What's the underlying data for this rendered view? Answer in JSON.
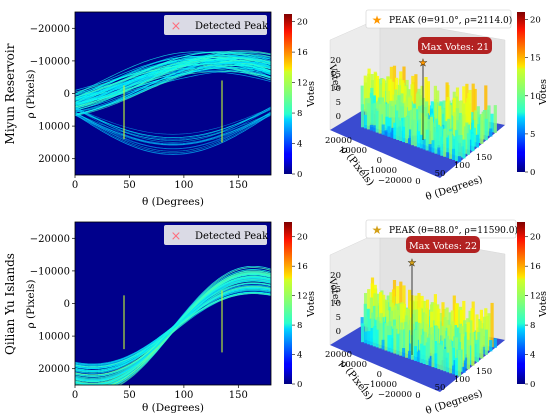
{
  "figure": {
    "rows": [
      {
        "row_label": "Miyun Reservoir",
        "hough": {
          "legend_label": "Detected Peak",
          "colorbar_label": "Votes",
          "colorbar_ticks": [
            "0",
            "4",
            "8",
            "12",
            "16",
            "20"
          ],
          "xlabel": "θ (Degrees)",
          "ylabel": "ρ (Pixels)"
        },
        "surface": {
          "legend_label": "PEAK (θ=91.0°, ρ=2114.0)",
          "max_label": "Max Votes: 21",
          "colorbar_label": "Votes",
          "colorbar_ticks": [
            "0",
            "5",
            "10",
            "15",
            "20"
          ],
          "xlabel": "θ (Degrees)",
          "ylabel": "ρ (Pixels)",
          "zlabel": "Votes",
          "x_ticks": [
            "0",
            "50",
            "100",
            "150"
          ],
          "y_ticks": [
            "20000",
            "10000",
            "0",
            "−10000",
            "−20000"
          ],
          "z_ticks": [
            "0",
            "5",
            "10",
            "15",
            "20"
          ]
        }
      },
      {
        "row_label": "Qilian Yu Islands",
        "hough": {
          "legend_label": "Detected Peak",
          "colorbar_label": "Votes",
          "colorbar_ticks": [
            "0",
            "4",
            "8",
            "12",
            "16",
            "20"
          ],
          "xlabel": "θ (Degrees)",
          "ylabel": "ρ (Pixels)"
        },
        "surface": {
          "legend_label": "PEAK (θ=88.0°, ρ=11590.0)",
          "max_label": "Max Votes: 22",
          "colorbar_label": "Votes",
          "colorbar_ticks": [
            "0",
            "4",
            "8",
            "12",
            "16",
            "20"
          ],
          "xlabel": "θ (Degrees)",
          "ylabel": "ρ (Pixels)",
          "zlabel": "Votes",
          "x_ticks": [
            "0",
            "50",
            "100",
            "150"
          ],
          "y_ticks": [
            "20000",
            "10000",
            "0",
            "−10000",
            "−20000"
          ],
          "z_ticks": [
            "0",
            "5",
            "10",
            "15",
            "20"
          ]
        }
      }
    ]
  },
  "chart_data": [
    {
      "type": "heatmap",
      "panel": "Miyun Reservoir Hough accumulator",
      "xlabel": "θ (Degrees)",
      "ylabel": "ρ (Pixels)",
      "xlim": [
        0,
        180
      ],
      "ylim": [
        25000,
        -25000
      ],
      "x_ticks": [
        0,
        50,
        100,
        150
      ],
      "y_ticks": [
        -20000,
        -10000,
        0,
        10000,
        20000
      ],
      "colorbar": {
        "label": "Votes",
        "range": [
          0,
          21
        ],
        "ticks": [
          0,
          4,
          8,
          12,
          16,
          20
        ]
      },
      "legend": {
        "entries": [
          "Detected Peak"
        ],
        "placement": "top-right"
      },
      "peak_columns_theta": [
        45,
        135
      ],
      "sinusoid_families": [
        {
          "description": "dense band",
          "theta_min_rho": 130,
          "rho_center": 2000,
          "amplitude": 7000
        },
        {
          "description": "lower arcs",
          "theta_min_rho": 90,
          "rho_center": 8000,
          "amplitude": 12000
        }
      ]
    },
    {
      "type": "surface",
      "panel": "Miyun Reservoir 3D votes",
      "xlabel": "θ (Degrees)",
      "ylabel": "ρ (Pixels)",
      "zlabel": "Votes",
      "x_range": [
        0,
        180
      ],
      "y_range": [
        -20000,
        20000
      ],
      "z_range": [
        0,
        20
      ],
      "peak": {
        "theta": 91.0,
        "rho": 2114.0,
        "votes": 21
      },
      "legend": {
        "entries": [
          "PEAK (θ=91.0°, ρ=2114.0)"
        ],
        "placement": "top"
      },
      "annotation": "Max Votes: 21",
      "colorbar": {
        "label": "Votes",
        "range": [
          0,
          21
        ],
        "ticks": [
          0,
          5,
          10,
          15,
          20
        ]
      }
    },
    {
      "type": "heatmap",
      "panel": "Qilian Yu Islands Hough accumulator",
      "xlabel": "θ (Degrees)",
      "ylabel": "ρ (Pixels)",
      "xlim": [
        0,
        180
      ],
      "ylim": [
        25000,
        -25000
      ],
      "x_ticks": [
        0,
        50,
        100,
        150
      ],
      "y_ticks": [
        -20000,
        -10000,
        0,
        10000,
        20000
      ],
      "colorbar": {
        "label": "Votes",
        "range": [
          0,
          22
        ],
        "ticks": [
          0,
          4,
          8,
          12,
          16,
          20
        ]
      },
      "legend": {
        "entries": [
          "Detected Peak"
        ],
        "placement": "top-right"
      },
      "peak_columns_theta": [
        45,
        135
      ],
      "sinusoid_families": [
        {
          "description": "converging band",
          "theta_cross": 90,
          "rho_cross": 8000,
          "amplitude": 22000
        }
      ]
    },
    {
      "type": "surface",
      "panel": "Qilian Yu Islands 3D votes",
      "xlabel": "θ (Degrees)",
      "ylabel": "ρ (Pixels)",
      "zlabel": "Votes",
      "x_range": [
        0,
        180
      ],
      "y_range": [
        -20000,
        20000
      ],
      "z_range": [
        0,
        20
      ],
      "peak": {
        "theta": 88.0,
        "rho": 11590.0,
        "votes": 22
      },
      "legend": {
        "entries": [
          "PEAK (θ=88.0°, ρ=11590.0)"
        ],
        "placement": "top"
      },
      "annotation": "Max Votes: 22",
      "colorbar": {
        "label": "Votes",
        "range": [
          0,
          22
        ],
        "ticks": [
          0,
          4,
          8,
          12,
          16,
          20
        ]
      }
    }
  ]
}
